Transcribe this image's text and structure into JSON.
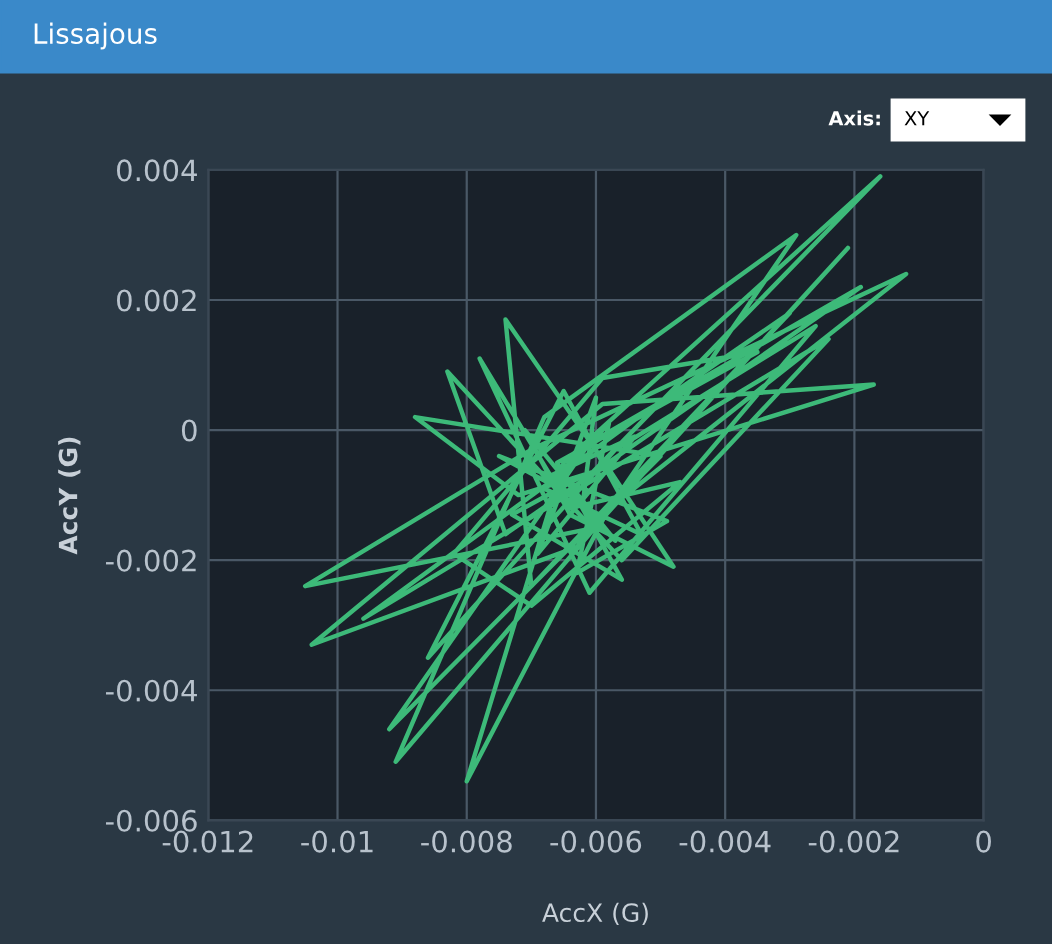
{
  "chart_data": {
    "type": "line",
    "title": "Lissajous",
    "xlabel": "AccX (G)",
    "ylabel": "AccY (G)",
    "annotations": [
      "Axis:",
      "XY"
    ],
    "xlim": [
      -0.012,
      0
    ],
    "xticks": [
      -0.012,
      -0.01,
      -0.008,
      -0.006,
      -0.004,
      -0.002,
      0
    ],
    "ylim": [
      -0.006,
      0.004
    ],
    "yticks": [
      -0.006,
      -0.004,
      -0.002,
      0,
      0.002,
      0.004
    ],
    "grid": true,
    "legend": false,
    "series": [
      {
        "color": "#3dba79",
        "x": [
          -0.0062,
          -0.0016,
          -0.0065,
          -0.008,
          -0.0058,
          -0.0012,
          -0.007,
          -0.0105,
          -0.006,
          -0.0029,
          -0.0068,
          -0.0091,
          -0.0055,
          -0.0021,
          -0.0063,
          -0.0104,
          -0.0059,
          -0.0017,
          -0.0072,
          -0.0088,
          -0.005,
          -0.0092,
          -0.0061,
          -0.0019,
          -0.0074,
          -0.0083,
          -0.0056,
          -0.0024,
          -0.0066,
          -0.0096,
          -0.0052,
          -0.003,
          -0.007,
          -0.0074,
          -0.0058,
          -0.0048,
          -0.0064,
          -0.0071,
          -0.0057,
          -0.0067,
          -0.0054,
          -0.0069,
          -0.006,
          -0.0062,
          -0.0075,
          -0.0049,
          -0.0063,
          -0.0058,
          -0.0068,
          -0.0053,
          -0.0065,
          -0.0086,
          -0.0057,
          -0.0026,
          -0.0061,
          -0.0078,
          -0.0064,
          -0.0047,
          -0.007,
          -0.0082,
          -0.0059,
          -0.0035,
          -0.0066,
          -0.0056,
          -0.0073,
          -0.0062
        ],
        "values": [
          -0.0008,
          0.0039,
          -0.0005,
          -0.0054,
          -0.0012,
          0.0024,
          -0.0003,
          -0.0024,
          -0.0015,
          0.003,
          0.0002,
          -0.0051,
          -0.0009,
          0.0028,
          -0.0018,
          -0.0033,
          0.0004,
          0.0007,
          -0.001,
          0.0002,
          -0.0004,
          -0.0046,
          -0.0002,
          0.0022,
          -0.0016,
          0.0009,
          -0.002,
          0.0014,
          -0.0011,
          -0.0029,
          0.0003,
          0.0018,
          -0.0024,
          0.0017,
          -0.0006,
          -0.0021,
          -0.0013,
          0.0,
          -0.0017,
          -0.0007,
          -0.0001,
          -0.0019,
          0.0005,
          -0.0011,
          -0.0004,
          -0.0014,
          -0.0022,
          0.0001,
          -0.0009,
          -0.0016,
          0.0006,
          -0.0035,
          -0.0003,
          0.0016,
          -0.0025,
          0.0011,
          -0.0012,
          -0.0008,
          -0.0027,
          -0.0019,
          0.0008,
          0.0012,
          -0.0005,
          -0.0023,
          -0.0013,
          -0.0007
        ]
      }
    ]
  }
}
